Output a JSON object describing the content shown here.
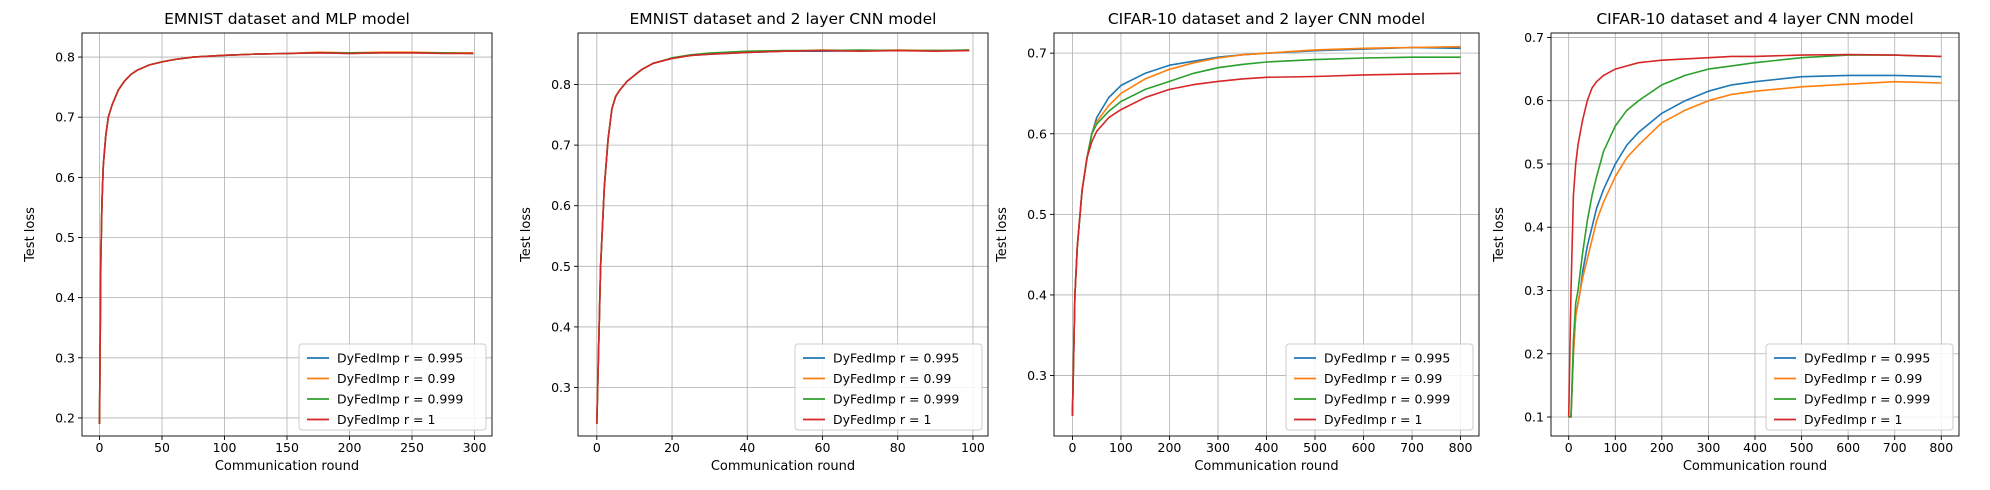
{
  "figure": {
    "colors": {
      "r0995": "#1f77b4",
      "r099": "#ff7f0e",
      "r0999": "#2ca02c",
      "r1": "#d62728"
    }
  },
  "chart_data": [
    {
      "type": "line",
      "title": "EMNIST dataset and MLP model",
      "xlabel": "Communication round",
      "ylabel": "Test loss",
      "xlim": [
        -14,
        314
      ],
      "ylim": [
        0.17,
        0.84
      ],
      "xticks": [
        0,
        50,
        100,
        150,
        200,
        250,
        300
      ],
      "yticks": [
        0.2,
        0.3,
        0.4,
        0.5,
        0.6,
        0.7,
        0.8
      ],
      "grid": true,
      "legend_position": "lower-right",
      "x": [
        0,
        1,
        2,
        3,
        5,
        7,
        10,
        15,
        20,
        25,
        30,
        40,
        50,
        60,
        75,
        100,
        125,
        150,
        175,
        200,
        225,
        250,
        275,
        299
      ],
      "series": [
        {
          "name": "DyFedImp r = 0.995",
          "color": "#1f77b4",
          "values": [
            0.19,
            0.46,
            0.56,
            0.62,
            0.67,
            0.7,
            0.72,
            0.745,
            0.76,
            0.771,
            0.778,
            0.787,
            0.792,
            0.796,
            0.8,
            0.803,
            0.805,
            0.806,
            0.807,
            0.806,
            0.807,
            0.807,
            0.807,
            0.806
          ]
        },
        {
          "name": "DyFedImp r = 0.99",
          "color": "#ff7f0e",
          "values": [
            0.19,
            0.46,
            0.56,
            0.62,
            0.67,
            0.7,
            0.72,
            0.745,
            0.76,
            0.771,
            0.778,
            0.787,
            0.792,
            0.796,
            0.8,
            0.803,
            0.805,
            0.806,
            0.808,
            0.807,
            0.808,
            0.808,
            0.807,
            0.807
          ]
        },
        {
          "name": "DyFedImp r = 0.999",
          "color": "#2ca02c",
          "values": [
            0.19,
            0.46,
            0.56,
            0.62,
            0.67,
            0.7,
            0.72,
            0.745,
            0.76,
            0.771,
            0.778,
            0.787,
            0.792,
            0.796,
            0.8,
            0.803,
            0.805,
            0.806,
            0.807,
            0.807,
            0.807,
            0.807,
            0.807,
            0.806
          ]
        },
        {
          "name": "DyFedImp r = 1",
          "color": "#d62728",
          "values": [
            0.19,
            0.46,
            0.56,
            0.62,
            0.67,
            0.7,
            0.72,
            0.745,
            0.76,
            0.771,
            0.778,
            0.787,
            0.792,
            0.796,
            0.8,
            0.803,
            0.805,
            0.806,
            0.807,
            0.806,
            0.807,
            0.807,
            0.806,
            0.806
          ]
        }
      ]
    },
    {
      "type": "line",
      "title": "EMNIST dataset and 2 layer CNN model",
      "xlabel": "Communication round",
      "ylabel": "Test loss",
      "xlim": [
        -5,
        104
      ],
      "ylim": [
        0.22,
        0.885
      ],
      "xticks": [
        0,
        20,
        40,
        60,
        80,
        100
      ],
      "yticks": [
        0.3,
        0.4,
        0.5,
        0.6,
        0.7,
        0.8
      ],
      "grid": true,
      "legend_position": "lower-right",
      "x": [
        0,
        1,
        2,
        3,
        4,
        5,
        6,
        8,
        10,
        12,
        15,
        18,
        20,
        25,
        30,
        40,
        50,
        60,
        70,
        80,
        90,
        99
      ],
      "series": [
        {
          "name": "DyFedImp r = 0.995",
          "color": "#1f77b4",
          "values": [
            0.24,
            0.5,
            0.63,
            0.71,
            0.76,
            0.78,
            0.79,
            0.805,
            0.815,
            0.825,
            0.835,
            0.84,
            0.843,
            0.848,
            0.85,
            0.853,
            0.855,
            0.855,
            0.856,
            0.856,
            0.856,
            0.856
          ]
        },
        {
          "name": "DyFedImp r = 0.99",
          "color": "#ff7f0e",
          "values": [
            0.24,
            0.5,
            0.63,
            0.71,
            0.76,
            0.78,
            0.79,
            0.805,
            0.815,
            0.825,
            0.835,
            0.84,
            0.843,
            0.848,
            0.851,
            0.854,
            0.855,
            0.857,
            0.856,
            0.857,
            0.856,
            0.857
          ]
        },
        {
          "name": "DyFedImp r = 0.999",
          "color": "#2ca02c",
          "values": [
            0.24,
            0.5,
            0.63,
            0.71,
            0.76,
            0.78,
            0.79,
            0.805,
            0.815,
            0.825,
            0.835,
            0.84,
            0.844,
            0.849,
            0.852,
            0.855,
            0.856,
            0.856,
            0.857,
            0.856,
            0.856,
            0.857
          ]
        },
        {
          "name": "DyFedImp r = 1",
          "color": "#d62728",
          "values": [
            0.24,
            0.5,
            0.63,
            0.71,
            0.76,
            0.78,
            0.79,
            0.805,
            0.815,
            0.825,
            0.835,
            0.84,
            0.843,
            0.848,
            0.85,
            0.853,
            0.855,
            0.856,
            0.855,
            0.856,
            0.855,
            0.856
          ]
        }
      ]
    },
    {
      "type": "line",
      "title": "CIFAR-10 dataset and 2 layer CNN  model",
      "xlabel": "Communication round",
      "ylabel": "Test loss",
      "xlim": [
        -38,
        838
      ],
      "ylim": [
        0.225,
        0.725
      ],
      "xticks": [
        0,
        100,
        200,
        300,
        400,
        500,
        600,
        700,
        800
      ],
      "yticks": [
        0.3,
        0.4,
        0.5,
        0.6,
        0.7
      ],
      "grid": true,
      "legend_position": "lower-right",
      "x": [
        0,
        5,
        10,
        20,
        30,
        40,
        50,
        75,
        100,
        150,
        200,
        250,
        300,
        350,
        400,
        500,
        600,
        700,
        800
      ],
      "series": [
        {
          "name": "DyFedImp r = 0.995",
          "color": "#1f77b4",
          "values": [
            0.25,
            0.4,
            0.46,
            0.53,
            0.57,
            0.6,
            0.62,
            0.645,
            0.66,
            0.675,
            0.685,
            0.69,
            0.695,
            0.698,
            0.7,
            0.703,
            0.705,
            0.707,
            0.706
          ]
        },
        {
          "name": "DyFedImp r = 0.99",
          "color": "#ff7f0e",
          "values": [
            0.25,
            0.4,
            0.46,
            0.53,
            0.57,
            0.6,
            0.615,
            0.635,
            0.65,
            0.668,
            0.68,
            0.688,
            0.694,
            0.698,
            0.7,
            0.704,
            0.706,
            0.707,
            0.708
          ]
        },
        {
          "name": "DyFedImp r = 0.999",
          "color": "#2ca02c",
          "values": [
            0.25,
            0.4,
            0.46,
            0.53,
            0.57,
            0.6,
            0.612,
            0.628,
            0.64,
            0.655,
            0.665,
            0.675,
            0.682,
            0.686,
            0.689,
            0.692,
            0.694,
            0.695,
            0.695
          ]
        },
        {
          "name": "DyFedImp r = 1",
          "color": "#d62728",
          "values": [
            0.25,
            0.4,
            0.46,
            0.53,
            0.57,
            0.59,
            0.603,
            0.62,
            0.63,
            0.645,
            0.655,
            0.661,
            0.665,
            0.668,
            0.67,
            0.671,
            0.673,
            0.674,
            0.675
          ]
        }
      ]
    },
    {
      "type": "line",
      "title": "CIFAR-10 dataset and 4 layer CNN  model",
      "xlabel": "Communication round",
      "ylabel": "Test loss",
      "xlim": [
        -38,
        838
      ],
      "ylim": [
        0.07,
        0.707
      ],
      "xticks": [
        0,
        100,
        200,
        300,
        400,
        500,
        600,
        700,
        800
      ],
      "yticks": [
        0.1,
        0.2,
        0.3,
        0.4,
        0.5,
        0.6,
        0.7
      ],
      "grid": true,
      "legend_position": "lower-right",
      "x": [
        0,
        5,
        10,
        15,
        20,
        25,
        30,
        40,
        50,
        60,
        75,
        100,
        125,
        150,
        200,
        250,
        300,
        350,
        400,
        500,
        600,
        700,
        800
      ],
      "series": [
        {
          "name": "DyFedImp r = 0.995",
          "color": "#1f77b4",
          "values": [
            0.1,
            0.1,
            0.2,
            0.26,
            0.28,
            0.3,
            0.33,
            0.37,
            0.4,
            0.43,
            0.46,
            0.5,
            0.53,
            0.55,
            0.58,
            0.6,
            0.615,
            0.625,
            0.63,
            0.638,
            0.64,
            0.64,
            0.638
          ]
        },
        {
          "name": "DyFedImp r = 0.99",
          "color": "#ff7f0e",
          "values": [
            0.1,
            0.1,
            0.2,
            0.26,
            0.28,
            0.3,
            0.32,
            0.35,
            0.38,
            0.41,
            0.44,
            0.48,
            0.51,
            0.53,
            0.565,
            0.585,
            0.6,
            0.61,
            0.615,
            0.622,
            0.626,
            0.63,
            0.628
          ]
        },
        {
          "name": "DyFedImp r = 0.999",
          "color": "#2ca02c",
          "values": [
            0.1,
            0.1,
            0.22,
            0.28,
            0.3,
            0.33,
            0.36,
            0.41,
            0.45,
            0.48,
            0.52,
            0.56,
            0.585,
            0.6,
            0.625,
            0.64,
            0.65,
            0.655,
            0.66,
            0.668,
            0.672,
            0.672,
            0.67
          ]
        },
        {
          "name": "DyFedImp r = 1",
          "color": "#d62728",
          "values": [
            0.1,
            0.3,
            0.45,
            0.5,
            0.53,
            0.55,
            0.57,
            0.6,
            0.62,
            0.63,
            0.64,
            0.65,
            0.655,
            0.66,
            0.664,
            0.666,
            0.668,
            0.67,
            0.67,
            0.672,
            0.673,
            0.672,
            0.67
          ]
        }
      ]
    }
  ]
}
